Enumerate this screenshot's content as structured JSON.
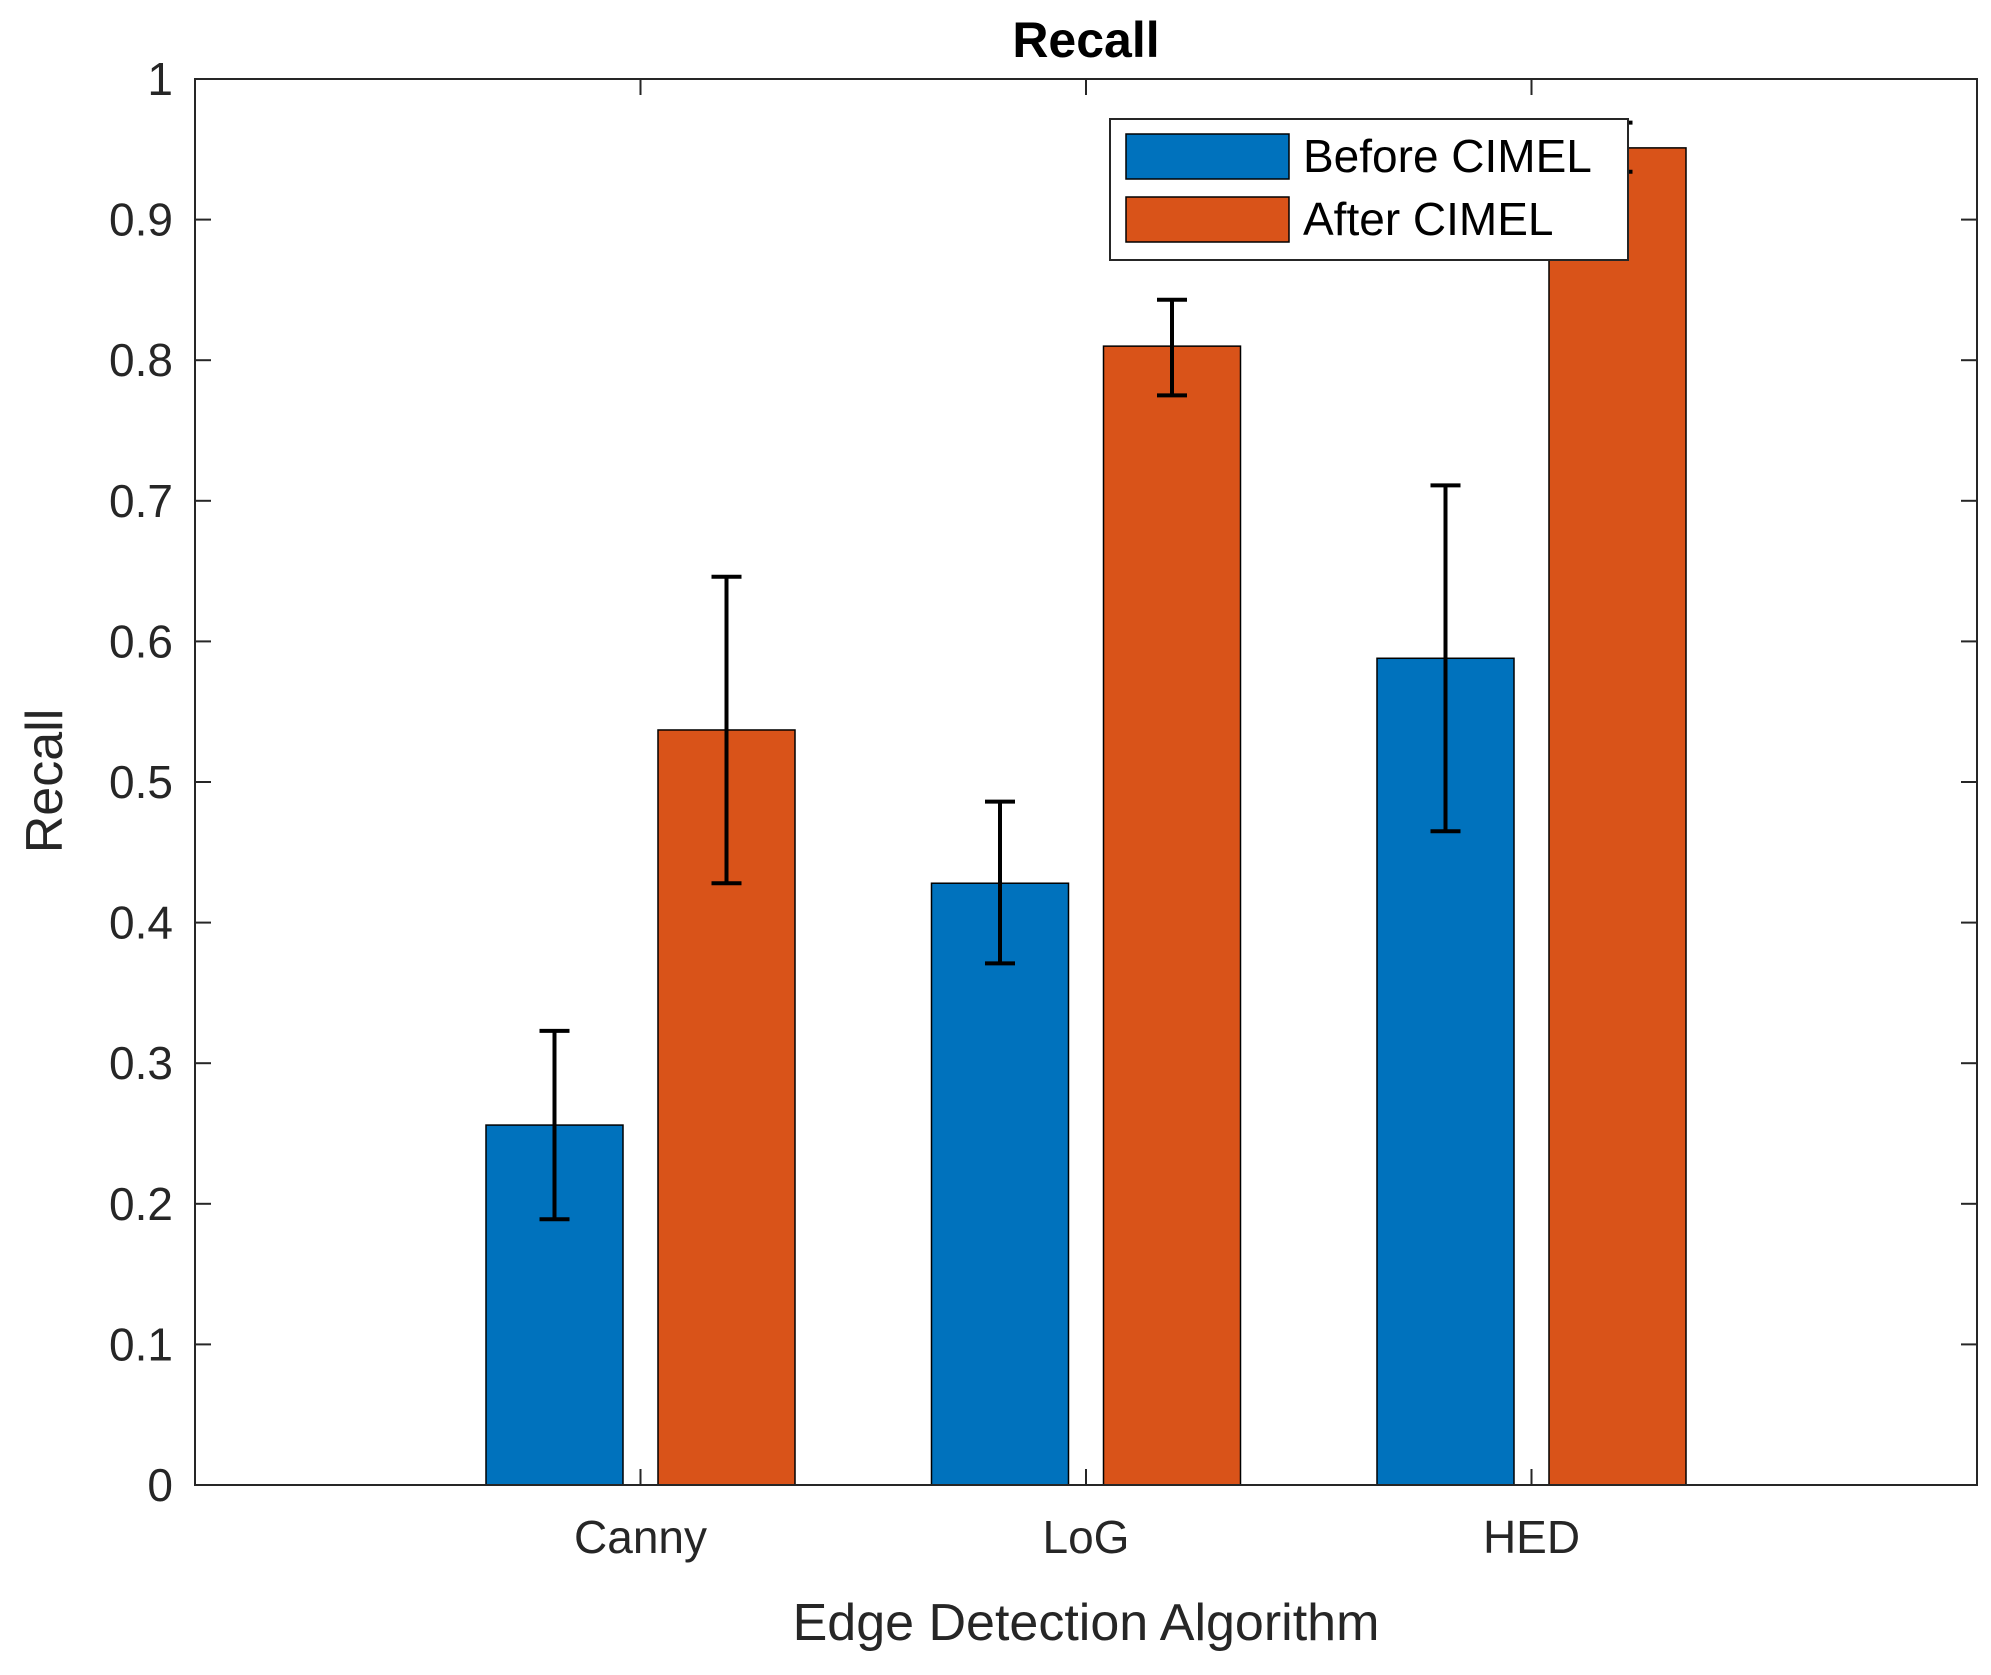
{
  "chart_data": {
    "type": "bar",
    "title": "Recall",
    "xlabel": "Edge Detection Algorithm",
    "ylabel": "Recall",
    "categories": [
      "Canny",
      "LoG",
      "HED"
    ],
    "ylim": [
      0,
      1
    ],
    "yticks": [
      0,
      0.1,
      0.2,
      0.3,
      0.4,
      0.5,
      0.6,
      0.7,
      0.8,
      0.9,
      1
    ],
    "ytick_labels": [
      "0",
      "0.1",
      "0.2",
      "0.3",
      "0.4",
      "0.5",
      "0.6",
      "0.7",
      "0.8",
      "0.9",
      "1"
    ],
    "grid": false,
    "legend_position": "top-right",
    "series": [
      {
        "name": "Before CIMEL",
        "color": "#0072BD",
        "values": [
          0.256,
          0.428,
          0.588
        ],
        "error_low": [
          0.189,
          0.371,
          0.465
        ],
        "error_high": [
          0.323,
          0.486,
          0.711
        ]
      },
      {
        "name": "After CIMEL",
        "color": "#D95319",
        "values": [
          0.537,
          0.81,
          0.951
        ],
        "error_low": [
          0.428,
          0.775,
          0.934
        ],
        "error_high": [
          0.646,
          0.843,
          0.969
        ]
      }
    ]
  }
}
